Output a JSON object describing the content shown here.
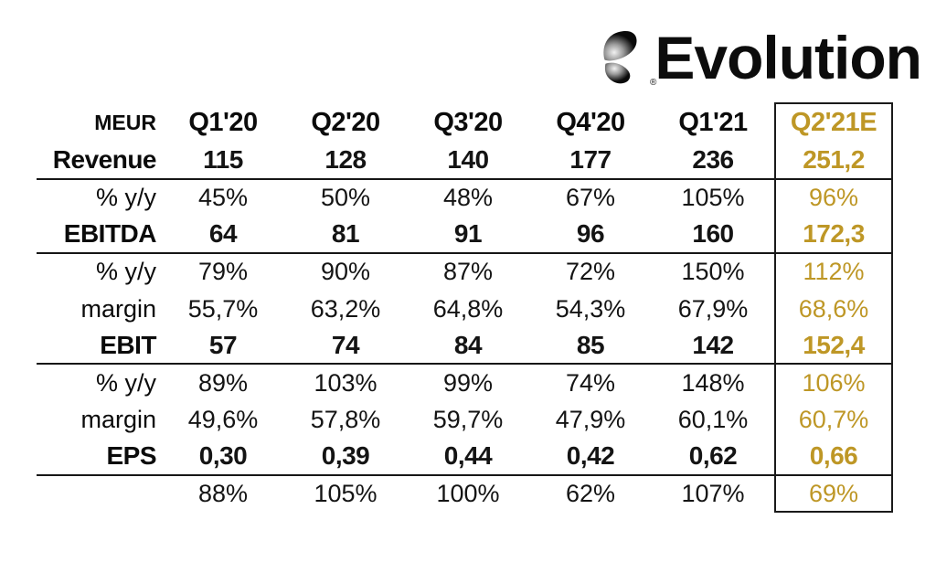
{
  "colors": {
    "accent_gold": "#BE9726",
    "text_black": "#0b0b0b",
    "line_black": "#161616"
  },
  "logo": {
    "brand": "Evolution",
    "registered": "®",
    "icon": "evolution-double-leaf-icon"
  },
  "chart_data": {
    "type": "table",
    "columns": [
      "MEUR",
      "Q1'20",
      "Q2'20",
      "Q3'20",
      "Q4'20",
      "Q1'21",
      "Q2'21E"
    ],
    "highlighted_column": "Q2'21E",
    "rows": [
      {
        "label": "Revenue",
        "emphasis": "strong",
        "separator_after": true,
        "values": [
          "115",
          "128",
          "140",
          "177",
          "236",
          "251,2"
        ]
      },
      {
        "label": "% y/y",
        "emphasis": "light",
        "separator_after": false,
        "values": [
          "45%",
          "50%",
          "48%",
          "67%",
          "105%",
          "96%"
        ]
      },
      {
        "label": "EBITDA",
        "emphasis": "strong",
        "separator_after": true,
        "values": [
          "64",
          "81",
          "91",
          "96",
          "160",
          "172,3"
        ]
      },
      {
        "label": "% y/y",
        "emphasis": "light",
        "separator_after": false,
        "values": [
          "79%",
          "90%",
          "87%",
          "72%",
          "150%",
          "112%"
        ]
      },
      {
        "label": "margin",
        "emphasis": "light",
        "separator_after": false,
        "values": [
          "55,7%",
          "63,2%",
          "64,8%",
          "54,3%",
          "67,9%",
          "68,6%"
        ]
      },
      {
        "label": "EBIT",
        "emphasis": "strong",
        "separator_after": true,
        "values": [
          "57",
          "74",
          "84",
          "85",
          "142",
          "152,4"
        ]
      },
      {
        "label": "% y/y",
        "emphasis": "light",
        "separator_after": false,
        "values": [
          "89%",
          "103%",
          "99%",
          "74%",
          "148%",
          "106%"
        ]
      },
      {
        "label": "margin",
        "emphasis": "light",
        "separator_after": false,
        "values": [
          "49,6%",
          "57,8%",
          "59,7%",
          "47,9%",
          "60,1%",
          "60,7%"
        ]
      },
      {
        "label": "EPS",
        "emphasis": "strong",
        "separator_after": true,
        "values": [
          "0,30",
          "0,39",
          "0,44",
          "0,42",
          "0,62",
          "0,66"
        ]
      },
      {
        "label": "",
        "emphasis": "light",
        "separator_after": false,
        "values": [
          "88%",
          "105%",
          "100%",
          "62%",
          "107%",
          "69%"
        ]
      }
    ]
  }
}
